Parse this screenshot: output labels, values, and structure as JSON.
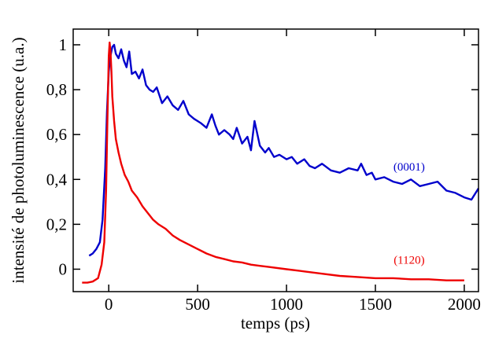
{
  "chart_data": {
    "type": "line",
    "xlabel": "temps (ps)",
    "ylabel": "intensité de photoluminescence (u.a.)",
    "xlim": [
      -200,
      2080
    ],
    "ylim": [
      -0.1,
      1.07
    ],
    "xticks": [
      {
        "value": 0,
        "label": "0"
      },
      {
        "value": 500,
        "label": "500"
      },
      {
        "value": 1000,
        "label": "1000"
      },
      {
        "value": 1500,
        "label": "1500"
      },
      {
        "value": 2000,
        "label": "2000"
      }
    ],
    "yticks": [
      {
        "value": 0,
        "label": "0"
      },
      {
        "value": 0.2,
        "label": "0,2"
      },
      {
        "value": 0.4,
        "label": "0,4"
      },
      {
        "value": 0.6,
        "label": "0,6"
      },
      {
        "value": 0.8,
        "label": "0,8"
      },
      {
        "value": 1,
        "label": "1"
      }
    ],
    "grid": false,
    "series": [
      {
        "label": "(0001)",
        "color": "#0000cc",
        "x": [
          -110,
          -90,
          -70,
          -50,
          -35,
          -20,
          -10,
          0,
          5,
          10,
          20,
          30,
          40,
          55,
          70,
          85,
          100,
          115,
          130,
          150,
          170,
          190,
          210,
          230,
          250,
          270,
          300,
          330,
          360,
          390,
          420,
          450,
          480,
          500,
          520,
          550,
          580,
          600,
          620,
          650,
          680,
          700,
          720,
          750,
          780,
          800,
          820,
          850,
          880,
          900,
          930,
          960,
          1000,
          1030,
          1060,
          1100,
          1130,
          1160,
          1200,
          1250,
          1300,
          1350,
          1400,
          1420,
          1450,
          1480,
          1500,
          1550,
          1600,
          1650,
          1700,
          1750,
          1800,
          1850,
          1900,
          1950,
          2000,
          2040,
          2080
        ],
        "y": [
          0.06,
          0.07,
          0.09,
          0.12,
          0.22,
          0.45,
          0.7,
          0.88,
          0.92,
          0.95,
          0.99,
          1.0,
          0.96,
          0.94,
          0.98,
          0.93,
          0.9,
          0.97,
          0.87,
          0.88,
          0.85,
          0.89,
          0.82,
          0.8,
          0.79,
          0.81,
          0.74,
          0.77,
          0.73,
          0.71,
          0.75,
          0.69,
          0.67,
          0.66,
          0.65,
          0.63,
          0.69,
          0.64,
          0.6,
          0.62,
          0.6,
          0.58,
          0.63,
          0.56,
          0.59,
          0.53,
          0.66,
          0.55,
          0.52,
          0.54,
          0.5,
          0.51,
          0.49,
          0.5,
          0.47,
          0.49,
          0.46,
          0.45,
          0.47,
          0.44,
          0.43,
          0.45,
          0.44,
          0.47,
          0.42,
          0.43,
          0.4,
          0.41,
          0.39,
          0.38,
          0.4,
          0.37,
          0.38,
          0.39,
          0.35,
          0.34,
          0.32,
          0.31,
          0.36
        ]
      },
      {
        "label": "(1120)",
        "color": "#ee0000",
        "x": [
          -150,
          -120,
          -90,
          -60,
          -40,
          -25,
          -15,
          -8,
          0,
          5,
          10,
          15,
          20,
          30,
          40,
          55,
          70,
          90,
          110,
          130,
          160,
          190,
          220,
          250,
          280,
          320,
          360,
          400,
          450,
          500,
          550,
          600,
          650,
          700,
          750,
          800,
          850,
          900,
          1000,
          1100,
          1200,
          1300,
          1400,
          1500,
          1600,
          1700,
          1800,
          1900,
          2000
        ],
        "y": [
          -0.06,
          -0.06,
          -0.055,
          -0.04,
          0.02,
          0.12,
          0.35,
          0.65,
          0.95,
          1.01,
          0.97,
          0.88,
          0.77,
          0.66,
          0.58,
          0.52,
          0.47,
          0.42,
          0.39,
          0.35,
          0.32,
          0.28,
          0.25,
          0.22,
          0.2,
          0.18,
          0.15,
          0.13,
          0.11,
          0.09,
          0.07,
          0.055,
          0.045,
          0.035,
          0.03,
          0.02,
          0.015,
          0.01,
          0.0,
          -0.01,
          -0.02,
          -0.03,
          -0.035,
          -0.04,
          -0.04,
          -0.045,
          -0.045,
          -0.05,
          -0.05
        ]
      }
    ]
  }
}
